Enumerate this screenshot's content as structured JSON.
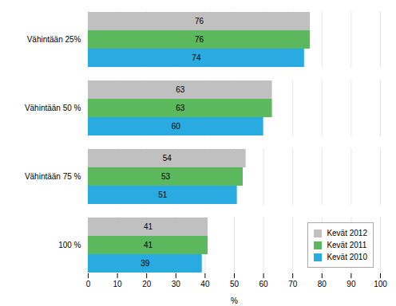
{
  "chart_data": {
    "type": "bar",
    "orientation": "horizontal",
    "categories": [
      "Vähintään 25%",
      "Vähintään 50 %",
      "Vähintään 75 %",
      "100 %"
    ],
    "series": [
      {
        "name": "Kevät 2012",
        "color": "#c0c0c0",
        "values": [
          76,
          63,
          54,
          41
        ]
      },
      {
        "name": "Kevät 2011",
        "color": "#5cb85c",
        "values": [
          76,
          63,
          53,
          41
        ]
      },
      {
        "name": "Kevät 2010",
        "color": "#29abe2",
        "values": [
          74,
          60,
          51,
          39
        ]
      }
    ],
    "xlabel": "%",
    "xlim": [
      0,
      100
    ],
    "xticks": [
      0,
      10,
      20,
      30,
      40,
      50,
      60,
      70,
      80,
      90,
      100
    ],
    "grid": true,
    "legend": "lower right",
    "data_labels": true
  }
}
